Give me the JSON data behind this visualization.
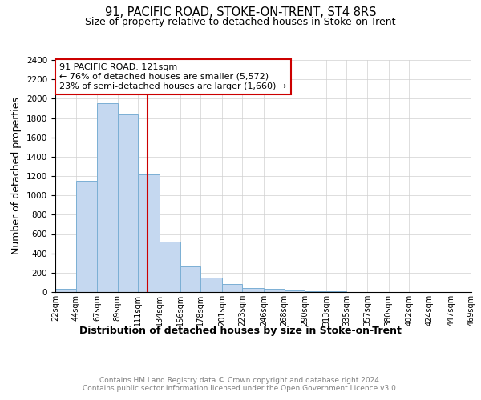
{
  "title1": "91, PACIFIC ROAD, STOKE-ON-TRENT, ST4 8RS",
  "title2": "Size of property relative to detached houses in Stoke-on-Trent",
  "xlabel": "Distribution of detached houses by size in Stoke-on-Trent",
  "ylabel": "Number of detached properties",
  "bar_left_edges": [
    22,
    44,
    67,
    89,
    111,
    134,
    156,
    178,
    201,
    223,
    246,
    268,
    290,
    313,
    335,
    357,
    380,
    402,
    424,
    447
  ],
  "bar_heights": [
    30,
    1150,
    1950,
    1840,
    1220,
    520,
    265,
    150,
    80,
    45,
    35,
    15,
    10,
    5,
    0,
    0,
    0,
    0,
    0,
    0
  ],
  "bar_color": "#c5d8f0",
  "bar_edge_color": "#7bafd4",
  "property_line_x": 121,
  "property_line_color": "#cc0000",
  "annotation_text": "91 PACIFIC ROAD: 121sqm\n← 76% of detached houses are smaller (5,572)\n23% of semi-detached houses are larger (1,660) →",
  "ylim": [
    0,
    2400
  ],
  "yticks": [
    0,
    200,
    400,
    600,
    800,
    1000,
    1200,
    1400,
    1600,
    1800,
    2000,
    2200,
    2400
  ],
  "tick_labels": [
    "22sqm",
    "44sqm",
    "67sqm",
    "89sqm",
    "111sqm",
    "134sqm",
    "156sqm",
    "178sqm",
    "201sqm",
    "223sqm",
    "246sqm",
    "268sqm",
    "290sqm",
    "313sqm",
    "335sqm",
    "357sqm",
    "380sqm",
    "402sqm",
    "424sqm",
    "447sqm",
    "469sqm"
  ],
  "tick_positions": [
    22,
    44,
    67,
    89,
    111,
    134,
    156,
    178,
    201,
    223,
    246,
    268,
    290,
    313,
    335,
    357,
    380,
    402,
    424,
    447,
    469
  ],
  "footer_text": "Contains HM Land Registry data © Crown copyright and database right 2024.\nContains public sector information licensed under the Open Government Licence v3.0.",
  "bg_color": "#ffffff",
  "grid_color": "#d0d0d0"
}
